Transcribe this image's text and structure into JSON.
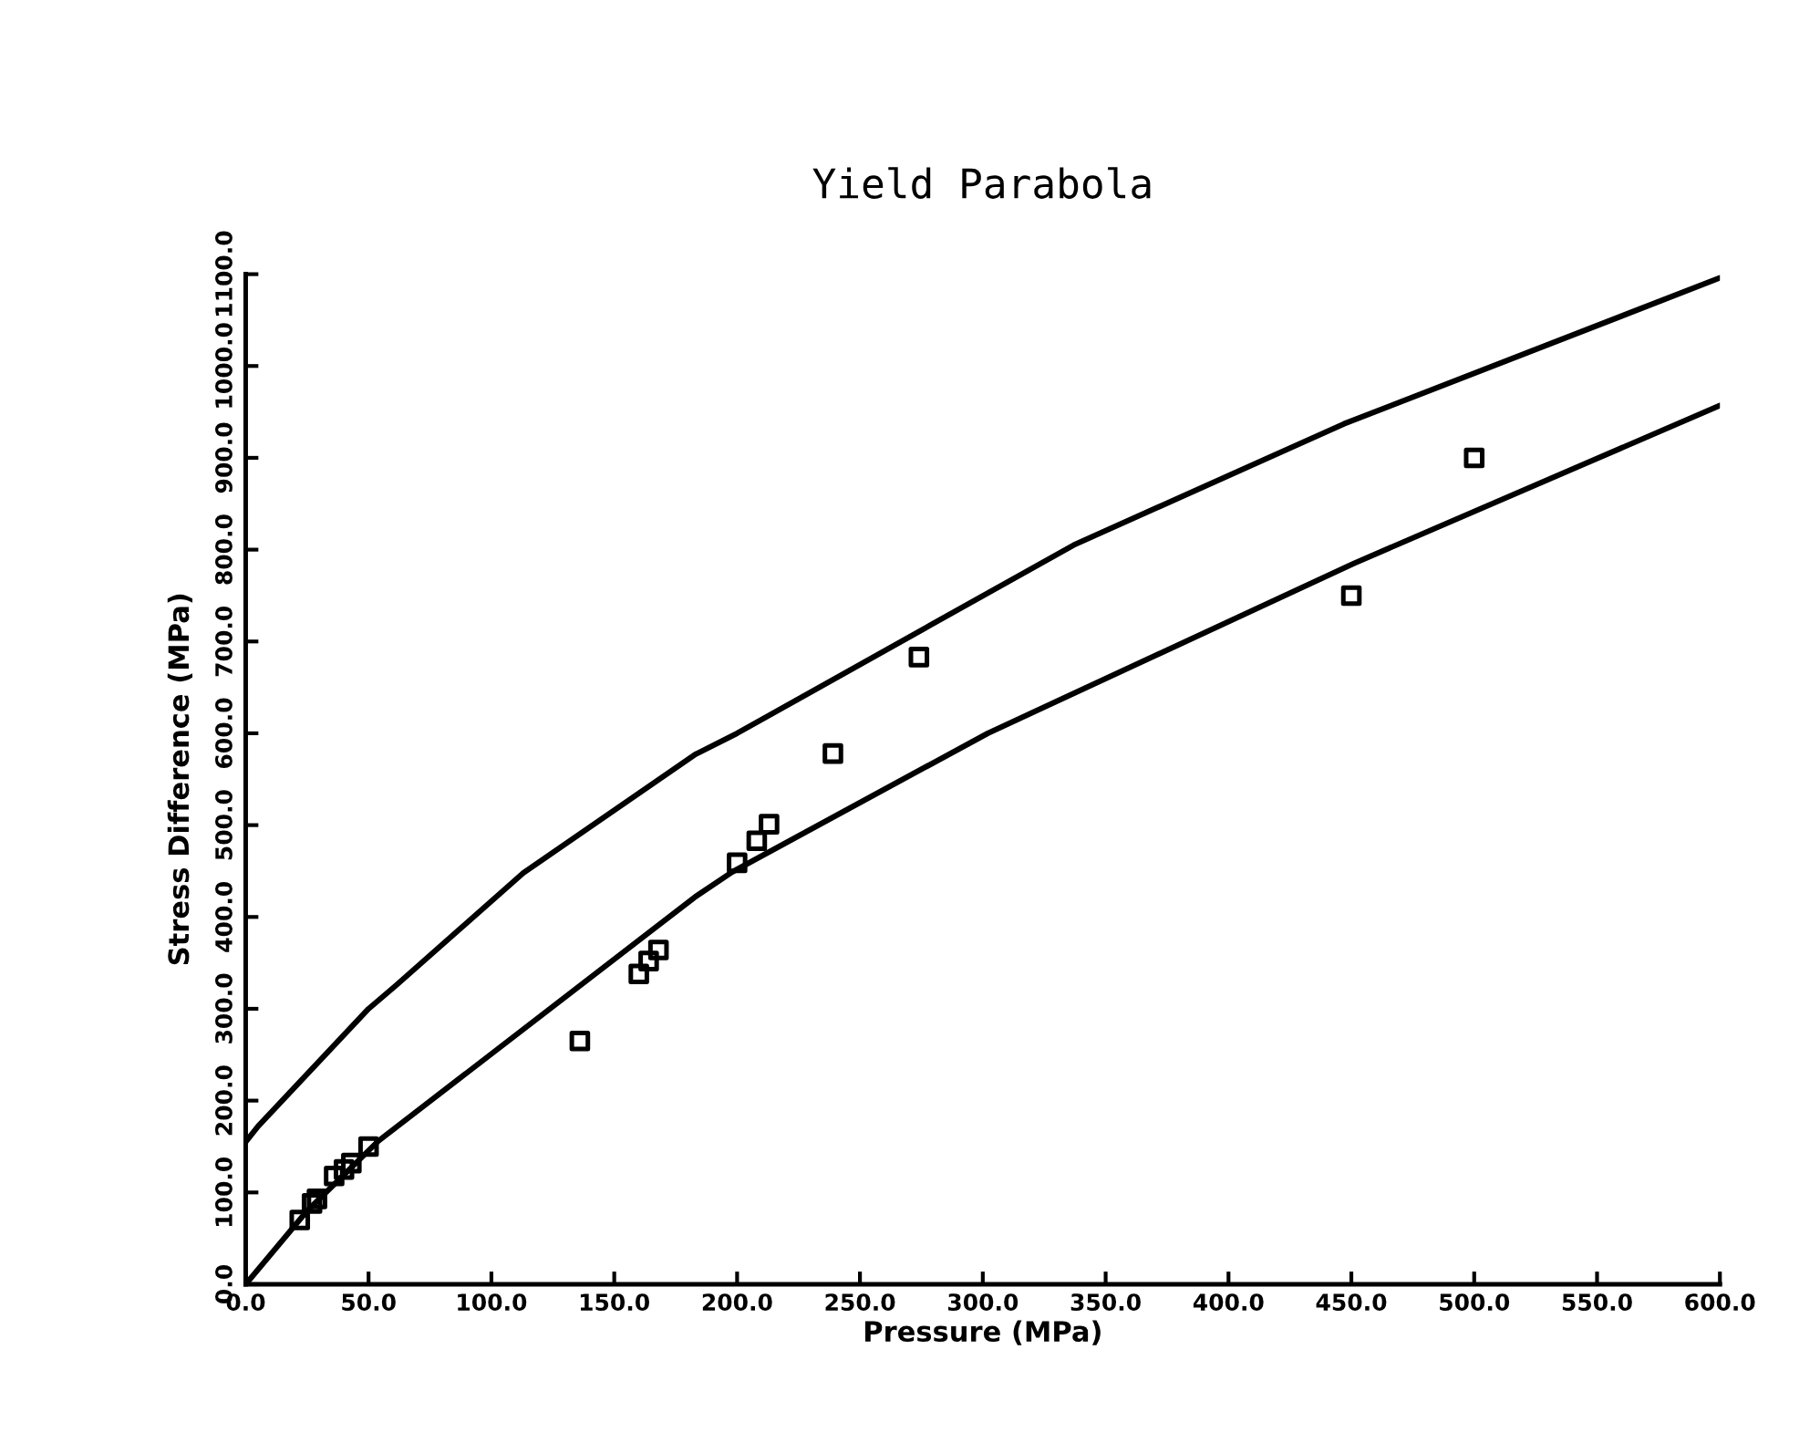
{
  "chart_data": {
    "type": "scatter",
    "title": "Yield Parabola",
    "xlabel": "Pressure (MPa)",
    "ylabel": "Stress Difference (MPa)",
    "xlim": [
      0,
      600
    ],
    "ylim": [
      0,
      1100
    ],
    "xticks": [
      {
        "value": 0,
        "label": "0.0"
      },
      {
        "value": 50,
        "label": "50.0"
      },
      {
        "value": 100,
        "label": "100.0"
      },
      {
        "value": 150,
        "label": "150.0"
      },
      {
        "value": 200,
        "label": "200.0"
      },
      {
        "value": 250,
        "label": "250.0"
      },
      {
        "value": 300,
        "label": "300.0"
      },
      {
        "value": 350,
        "label": "350.0"
      },
      {
        "value": 400,
        "label": "400.0"
      },
      {
        "value": 450,
        "label": "450.0"
      },
      {
        "value": 500,
        "label": "500.0"
      },
      {
        "value": 550,
        "label": "550.0"
      },
      {
        "value": 600,
        "label": "600.0"
      }
    ],
    "yticks": [
      {
        "value": 0,
        "label": "0.0"
      },
      {
        "value": 100,
        "label": "100.0"
      },
      {
        "value": 200,
        "label": "200.0"
      },
      {
        "value": 300,
        "label": "300.0"
      },
      {
        "value": 400,
        "label": "400.0"
      },
      {
        "value": 500,
        "label": "500.0"
      },
      {
        "value": 600,
        "label": "600.0"
      },
      {
        "value": 700,
        "label": "700.0"
      },
      {
        "value": 800,
        "label": "800.0"
      },
      {
        "value": 900,
        "label": "900.0"
      },
      {
        "value": 1000,
        "label": "1000.0"
      },
      {
        "value": 1100,
        "label": "1100.0"
      }
    ],
    "grid": false,
    "legend": false,
    "series": [
      {
        "marker": "square",
        "color": "#000000",
        "x": [
          22,
          27,
          29,
          36,
          40,
          43,
          50,
          136,
          160,
          164,
          168,
          200,
          208,
          213,
          239,
          274,
          450,
          500
        ],
        "values": [
          70,
          88,
          93,
          118,
          125,
          132,
          150,
          265,
          338,
          352,
          364,
          459,
          483,
          501,
          578,
          683,
          750,
          900
        ]
      },
      {
        "type": "line",
        "marker": "none",
        "line_style": "solid",
        "color": "#000000",
        "x": [
          0,
          5,
          50,
          61,
          113,
          183,
          200,
          337,
          447,
          600
        ],
        "values": [
          155,
          172,
          300,
          325,
          448,
          577,
          600,
          805,
          937,
          1096
        ]
      },
      {
        "type": "line",
        "marker": "none",
        "line_style": "solid",
        "color": "#000000",
        "x": [
          0,
          25,
          54,
          183,
          198,
          302,
          451,
          600
        ],
        "values": [
          0,
          80,
          156,
          422,
          449,
          600,
          785,
          957
        ]
      }
    ]
  }
}
